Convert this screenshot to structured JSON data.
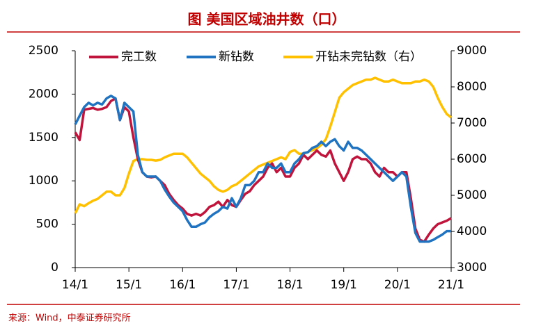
{
  "title": "图  美国区域油井数（口）",
  "source": "来源：Wind，中泰证券研究所",
  "chart_data": {
    "type": "line",
    "x": [
      0,
      1,
      2,
      3,
      4,
      5,
      6,
      7,
      8,
      9,
      10,
      11,
      12,
      13,
      14,
      15,
      16,
      17,
      18,
      19,
      20,
      21,
      22,
      23,
      24,
      25,
      26,
      27,
      28,
      29,
      30,
      31,
      32,
      33,
      34,
      35,
      36,
      37,
      38,
      39,
      40,
      41,
      42,
      43,
      44,
      45,
      46,
      47,
      48,
      49,
      50,
      51,
      52,
      53,
      54,
      55,
      56,
      57,
      58,
      59,
      60,
      61,
      62,
      63,
      64,
      65,
      66,
      67,
      68,
      69,
      70,
      71,
      72,
      73,
      74,
      75,
      76,
      77,
      78,
      79,
      80,
      81,
      82,
      83,
      84
    ],
    "xlim": [
      0,
      84
    ],
    "xticks": [
      {
        "value": 0,
        "label": "14/1"
      },
      {
        "value": 12,
        "label": "15/1"
      },
      {
        "value": 24,
        "label": "16/1"
      },
      {
        "value": 36,
        "label": "17/1"
      },
      {
        "value": 48,
        "label": "18/1"
      },
      {
        "value": 60,
        "label": "19/1"
      },
      {
        "value": 72,
        "label": "20/1"
      },
      {
        "value": 84,
        "label": "21/1"
      }
    ],
    "ylim": [
      0,
      2500
    ],
    "yticks": [
      0,
      500,
      1000,
      1500,
      2000,
      2500
    ],
    "y2lim": [
      3000,
      9000
    ],
    "y2ticks": [
      3000,
      4000,
      5000,
      6000,
      7000,
      8000,
      9000
    ],
    "series": [
      {
        "name": "完工数",
        "color": "#c0143c",
        "values": [
          1560,
          1470,
          1820,
          1830,
          1840,
          1820,
          1830,
          1850,
          1920,
          1950,
          1700,
          1850,
          1800,
          1500,
          1250,
          1100,
          1050,
          1040,
          1050,
          1000,
          950,
          850,
          780,
          720,
          680,
          620,
          600,
          620,
          600,
          640,
          700,
          720,
          760,
          700,
          780,
          720,
          700,
          780,
          850,
          880,
          950,
          1000,
          1050,
          1150,
          1200,
          1100,
          1150,
          1050,
          1050,
          1150,
          1200,
          1300,
          1250,
          1300,
          1350,
          1300,
          1280,
          1350,
          1200,
          1100,
          1000,
          1100,
          1250,
          1280,
          1250,
          1250,
          1200,
          1100,
          1050,
          1150,
          1100,
          1100,
          1050,
          1100,
          1100,
          800,
          450,
          320,
          300,
          380,
          450,
          500,
          520,
          540,
          570
        ]
      },
      {
        "name": "新钻数",
        "color": "#1f73c0",
        "values": [
          1650,
          1750,
          1850,
          1900,
          1870,
          1900,
          1880,
          1950,
          1980,
          1950,
          1700,
          1900,
          1850,
          1800,
          1300,
          1100,
          1050,
          1050,
          1050,
          1000,
          900,
          820,
          750,
          700,
          650,
          550,
          470,
          470,
          500,
          520,
          580,
          620,
          650,
          700,
          680,
          800,
          700,
          800,
          950,
          950,
          1000,
          1100,
          1100,
          1200,
          1150,
          1150,
          1200,
          1100,
          1100,
          1200,
          1250,
          1320,
          1330,
          1380,
          1400,
          1450,
          1400,
          1450,
          1480,
          1400,
          1350,
          1450,
          1380,
          1380,
          1350,
          1300,
          1250,
          1200,
          1150,
          1100,
          1050,
          1000,
          1050,
          1100,
          1050,
          700,
          400,
          300,
          300,
          300,
          320,
          350,
          380,
          420,
          420
        ]
      },
      {
        "name": "开钻未完钻数（右）",
        "color": "#ffc000",
        "axis": "y2",
        "values": [
          4500,
          4750,
          4700,
          4780,
          4850,
          4900,
          5000,
          5100,
          5100,
          5000,
          5000,
          5200,
          5600,
          5950,
          6000,
          6000,
          5980,
          5980,
          5960,
          5980,
          6050,
          6100,
          6150,
          6150,
          6150,
          6050,
          5900,
          5750,
          5600,
          5500,
          5400,
          5250,
          5150,
          5100,
          5150,
          5250,
          5300,
          5400,
          5500,
          5600,
          5700,
          5800,
          5850,
          5900,
          5950,
          6000,
          6050,
          6000,
          6200,
          6250,
          6150,
          6150,
          6200,
          6250,
          6300,
          6400,
          6550,
          6900,
          7300,
          7700,
          7850,
          7950,
          8050,
          8100,
          8150,
          8200,
          8200,
          8250,
          8200,
          8150,
          8150,
          8200,
          8150,
          8100,
          8100,
          8100,
          8150,
          8150,
          8200,
          8150,
          8000,
          7700,
          7450,
          7250,
          7150
        ]
      }
    ]
  }
}
